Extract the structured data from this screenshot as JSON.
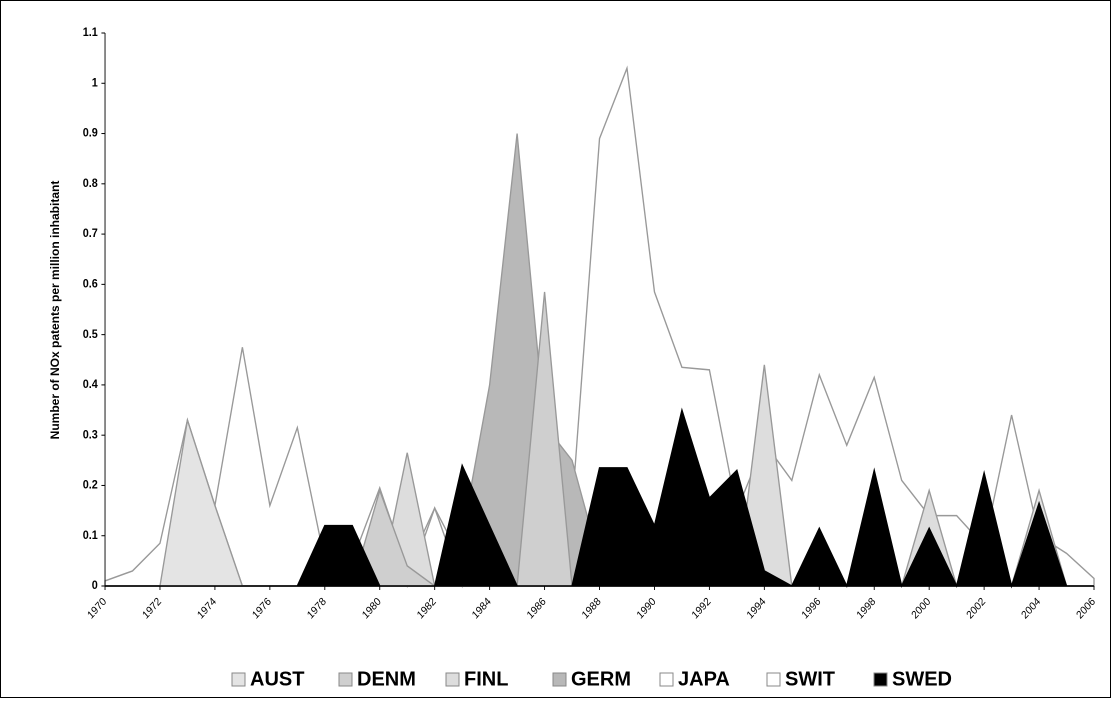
{
  "chart_data": {
    "type": "area",
    "y_label": "Number of NOx patents per million inhabitant",
    "x": [
      1970,
      1971,
      1972,
      1973,
      1974,
      1975,
      1976,
      1977,
      1978,
      1979,
      1980,
      1981,
      1982,
      1983,
      1984,
      1985,
      1986,
      1987,
      1988,
      1989,
      1990,
      1991,
      1992,
      1993,
      1994,
      1995,
      1996,
      1997,
      1998,
      1999,
      2000,
      2001,
      2002,
      2003,
      2004,
      2005,
      2006
    ],
    "xlim": [
      1970,
      2006
    ],
    "xticks": [
      1970,
      1972,
      1974,
      1976,
      1978,
      1980,
      1982,
      1984,
      1986,
      1988,
      1990,
      1992,
      1994,
      1996,
      1998,
      2000,
      2002,
      2004,
      2006
    ],
    "ylim": [
      0,
      1.1
    ],
    "yticks": [
      0,
      0.1,
      0.2,
      0.3,
      0.4,
      0.5,
      0.6,
      0.7,
      0.8,
      0.9,
      1,
      1.1
    ],
    "series": [
      {
        "name": "AUST",
        "color": "#e4e4e4",
        "values": [
          0,
          0,
          0,
          0.33,
          0.16,
          0,
          0,
          0,
          0,
          0,
          0,
          0,
          0,
          0,
          0,
          0,
          0,
          0,
          0,
          0,
          0,
          0,
          0,
          0,
          0,
          0,
          0,
          0,
          0,
          0,
          0,
          0,
          0.19,
          0,
          0.19,
          0,
          0
        ]
      },
      {
        "name": "DENM",
        "color": "#cfcfcf",
        "values": [
          0,
          0,
          0,
          0,
          0,
          0,
          0,
          0,
          0,
          0,
          0.19,
          0.04,
          0,
          0,
          0,
          0,
          0.585,
          0,
          0,
          0,
          0,
          0,
          0,
          0,
          0,
          0,
          0,
          0,
          0,
          0,
          0,
          0,
          0,
          0,
          0,
          0,
          0
        ]
      },
      {
        "name": "FINL",
        "color": "#dddddd",
        "values": [
          0,
          0,
          0,
          0,
          0,
          0,
          0,
          0,
          0,
          0,
          0,
          0.265,
          0,
          0,
          0,
          0,
          0,
          0,
          0,
          0,
          0,
          0,
          0,
          0,
          0.44,
          0,
          0,
          0,
          0,
          0,
          0.19,
          0,
          0,
          0,
          0,
          0,
          0
        ]
      },
      {
        "name": "GERM",
        "color": "#b8b8b8",
        "values": [
          0,
          0,
          0,
          0,
          0,
          0,
          0,
          0,
          0,
          0,
          0,
          0,
          0,
          0.1,
          0.4,
          0.9,
          0.32,
          0.25,
          0.05,
          0,
          0,
          0,
          0,
          0,
          0,
          0,
          0,
          0,
          0,
          0,
          0,
          0,
          0,
          0,
          0,
          0,
          0
        ]
      },
      {
        "name": "JAPA",
        "color": "#ffffff",
        "values": [
          0,
          0,
          0,
          0.08,
          0.16,
          0,
          0,
          0,
          0,
          0,
          0.16,
          0,
          0.155,
          0,
          0.23,
          0.61,
          0,
          0.155,
          0,
          0,
          0,
          0,
          0,
          0,
          0,
          0,
          0,
          0,
          0,
          0,
          0,
          0,
          0,
          0,
          0,
          0,
          0
        ]
      },
      {
        "name": "SWIT",
        "color": "#ffffff",
        "values": [
          0.01,
          0.03,
          0.085,
          0.33,
          0.16,
          0.475,
          0.16,
          0.315,
          0.05,
          0.05,
          0.195,
          0.035,
          0.155,
          0.05,
          0.23,
          0.61,
          0.035,
          0.155,
          0.89,
          1.03,
          0.585,
          0.435,
          0.43,
          0.15,
          0.285,
          0.21,
          0.42,
          0.28,
          0.415,
          0.21,
          0.14,
          0.14,
          0.08,
          0.34,
          0.1,
          0.065,
          0.015
        ]
      },
      {
        "name": "SWED",
        "color": "#000000",
        "values": [
          0,
          0,
          0,
          0,
          0,
          0,
          0,
          0,
          0.12,
          0.12,
          0,
          0,
          0,
          0.24,
          0.12,
          0,
          0,
          0,
          0.235,
          0.235,
          0.12,
          0.35,
          0.175,
          0.23,
          0.03,
          0,
          0.115,
          0,
          0.23,
          0,
          0.115,
          0,
          0.225,
          0,
          0.165,
          0,
          0
        ]
      }
    ]
  }
}
